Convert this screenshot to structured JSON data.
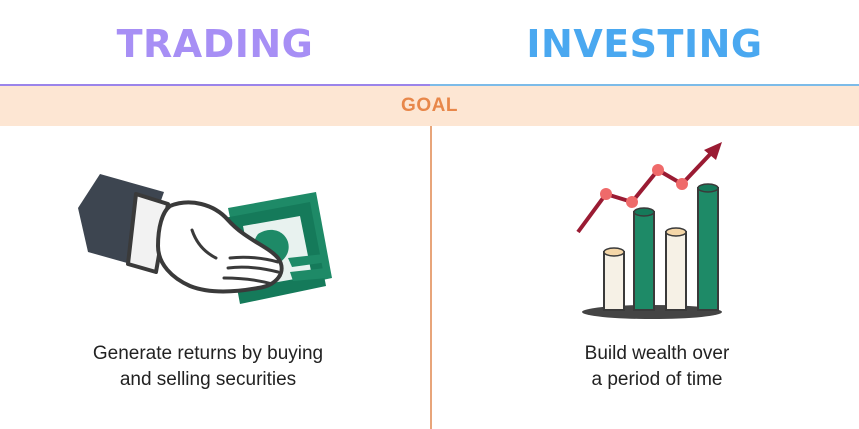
{
  "columns": {
    "left": {
      "title": "TRADING",
      "caption": [
        "Generate returns by buying",
        "and selling securities"
      ]
    },
    "right": {
      "title": "INVESTING",
      "caption": [
        "Build wealth over",
        "a period of time"
      ]
    }
  },
  "band": {
    "label": "GOAL"
  },
  "colors": {
    "trading_title": "#a78ff5",
    "investing_title": "#4aa8f0",
    "band_bg": "#fde6d3",
    "band_text": "#e8874a",
    "divider": "#e8a57a",
    "rule_left": "#9b84ea",
    "rule_right": "#7cbbe8"
  },
  "icons": {
    "left": "handshake-money-icon",
    "right": "growth-chart-icon"
  }
}
